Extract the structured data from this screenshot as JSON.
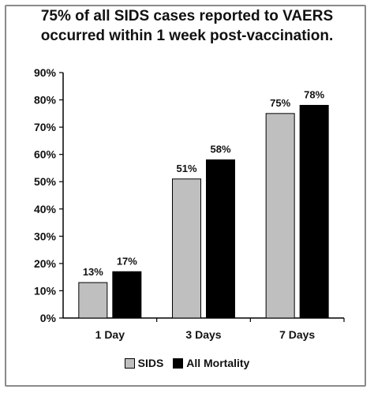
{
  "chart_data": {
    "type": "bar",
    "title_lines": [
      "75% of all SIDS cases reported to VAERS",
      "occurred within 1 week post-vaccination."
    ],
    "categories": [
      "1 Day",
      "3 Days",
      "7 Days"
    ],
    "series": [
      {
        "name": "SIDS",
        "values": [
          13,
          51,
          75
        ],
        "labels": [
          "13%",
          "51%",
          "75%"
        ],
        "color": "#bfbfbf"
      },
      {
        "name": "All Mortality",
        "values": [
          17,
          58,
          78
        ],
        "labels": [
          "17%",
          "58%",
          "78%"
        ],
        "color": "#000000"
      }
    ],
    "ylim": [
      0,
      90
    ],
    "yticks": [
      "0%",
      "10%",
      "20%",
      "30%",
      "40%",
      "50%",
      "60%",
      "70%",
      "80%",
      "90%"
    ],
    "grid": false,
    "legend_position": "bottom"
  }
}
